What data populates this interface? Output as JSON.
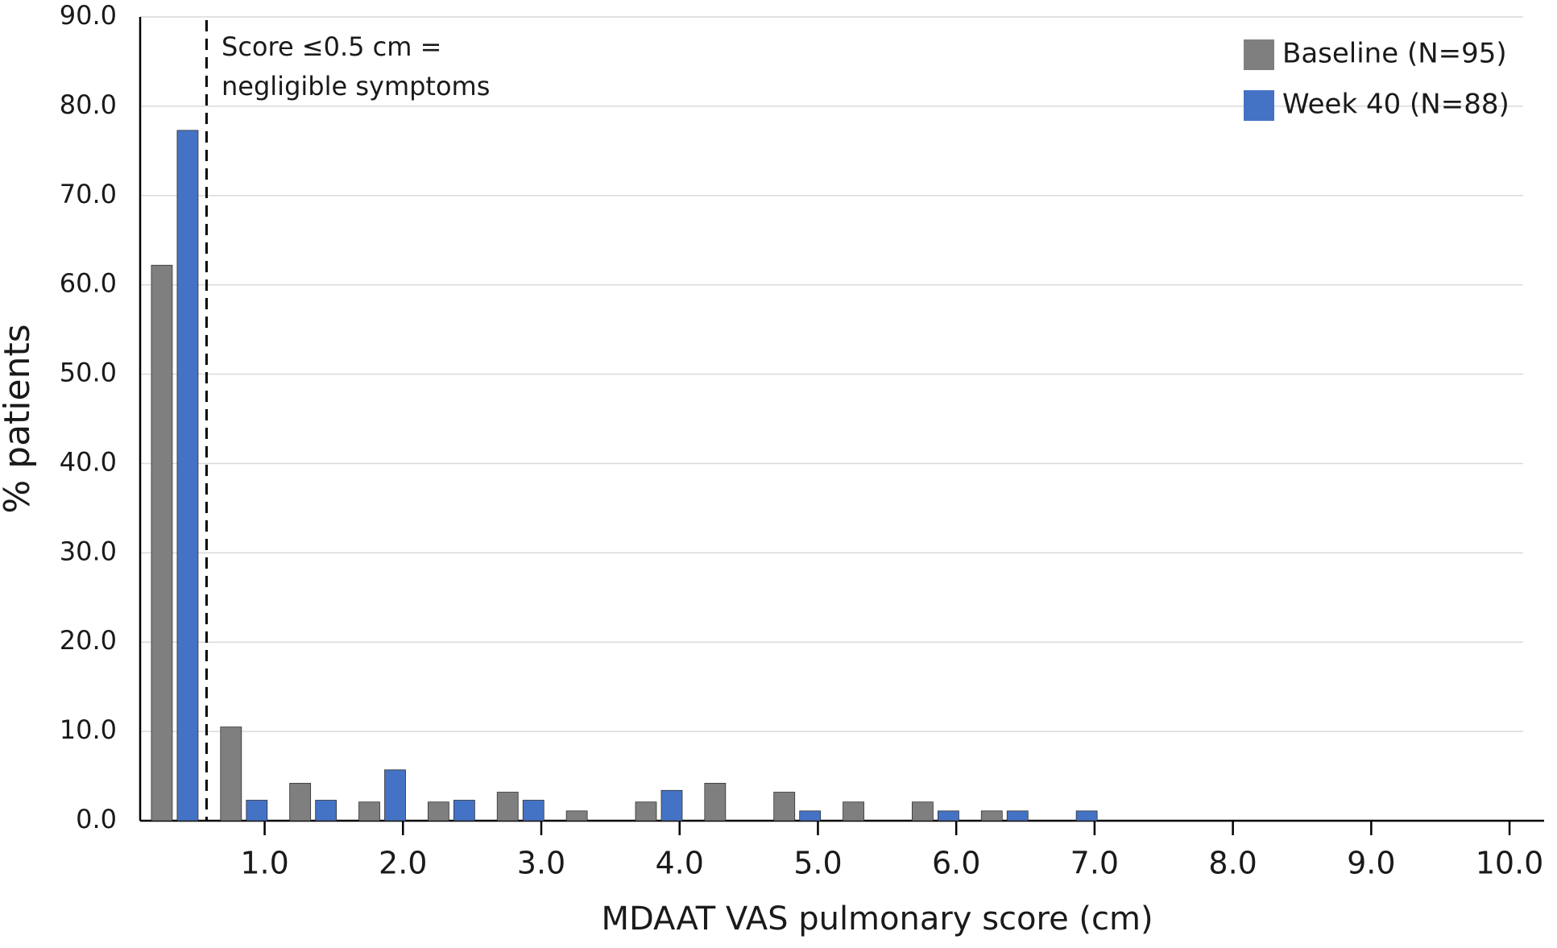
{
  "chart_data": {
    "type": "bar",
    "x_label": "MDAAT VAS pulmonary score (cm)",
    "y_label": "% patients",
    "annotation": [
      "Score ≤0.5 cm =",
      "negligible symptoms"
    ],
    "vline": 0.58,
    "x": [
      0.35,
      0.85,
      1.35,
      1.85,
      2.35,
      2.85,
      3.35,
      3.85,
      4.35,
      4.85,
      5.35,
      5.85,
      6.35,
      6.85
    ],
    "series": [
      {
        "name": "Baseline (N=95)",
        "color": "#7f7f7f",
        "values": [
          62.2,
          10.5,
          4.2,
          2.1,
          2.1,
          3.2,
          1.1,
          2.1,
          4.2,
          3.2,
          2.1,
          2.1,
          1.1,
          0
        ]
      },
      {
        "name": "Week 40 (N=88)",
        "color": "#4472c4",
        "values": [
          77.3,
          2.3,
          2.3,
          5.7,
          2.3,
          2.3,
          0,
          3.4,
          0,
          1.1,
          0,
          1.1,
          1.1,
          1.1
        ]
      }
    ],
    "xlim": [
      0.1,
      10.25
    ],
    "xticks": [
      {
        "value": 1,
        "label": "1.0"
      },
      {
        "value": 2,
        "label": "2.0"
      },
      {
        "value": 3,
        "label": "3.0"
      },
      {
        "value": 4,
        "label": "4.0"
      },
      {
        "value": 5,
        "label": "5.0"
      },
      {
        "value": 6,
        "label": "6.0"
      },
      {
        "value": 7,
        "label": "7.0"
      },
      {
        "value": 8,
        "label": "8.0"
      },
      {
        "value": 9,
        "label": "9.0"
      },
      {
        "value": 10,
        "label": "10.0"
      }
    ],
    "ylim": [
      0,
      90
    ],
    "yticks": [
      {
        "value": 0,
        "label": "0.0"
      },
      {
        "value": 10,
        "label": "10.0"
      },
      {
        "value": 20,
        "label": "20.0"
      },
      {
        "value": 30,
        "label": "30.0"
      },
      {
        "value": 40,
        "label": "40.0"
      },
      {
        "value": 50,
        "label": "50.0"
      },
      {
        "value": 60,
        "label": "60.0"
      },
      {
        "value": 70,
        "label": "70.0"
      },
      {
        "value": 80,
        "label": "80.0"
      },
      {
        "value": 90,
        "label": "90.0"
      }
    ],
    "grid": true,
    "legend": "top-right"
  }
}
